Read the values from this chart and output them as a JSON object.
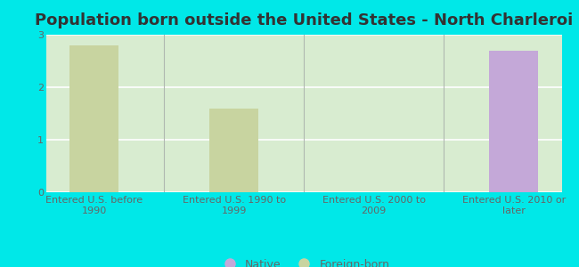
{
  "title": "Population born outside the United States - North Charleroi",
  "categories": [
    "Entered U.S. before\n1990",
    "Entered U.S. 1990 to\n1999",
    "Entered U.S. 2000 to\n2009",
    "Entered U.S. 2010 or\nlater"
  ],
  "foreign_born_values": [
    2.8,
    1.6,
    0.0,
    0.0
  ],
  "native_values": [
    0.0,
    0.0,
    0.0,
    2.7
  ],
  "foreign_born_color": "#c8d4a0",
  "native_color": "#c4a8d8",
  "background_color": "#00e8e8",
  "plot_bg_color_left": "#d8ecd0",
  "plot_bg_color_right": "#e8f4f0",
  "ylim": [
    0,
    3
  ],
  "yticks": [
    0,
    1,
    2,
    3
  ],
  "title_fontsize": 13,
  "tick_label_fontsize": 8,
  "legend_native_label": "Native",
  "legend_foreign_label": "Foreign-born",
  "bar_width": 0.35,
  "grid_color": "#ffffff",
  "tick_color": "#666666",
  "separator_color": "#b0b8b0"
}
